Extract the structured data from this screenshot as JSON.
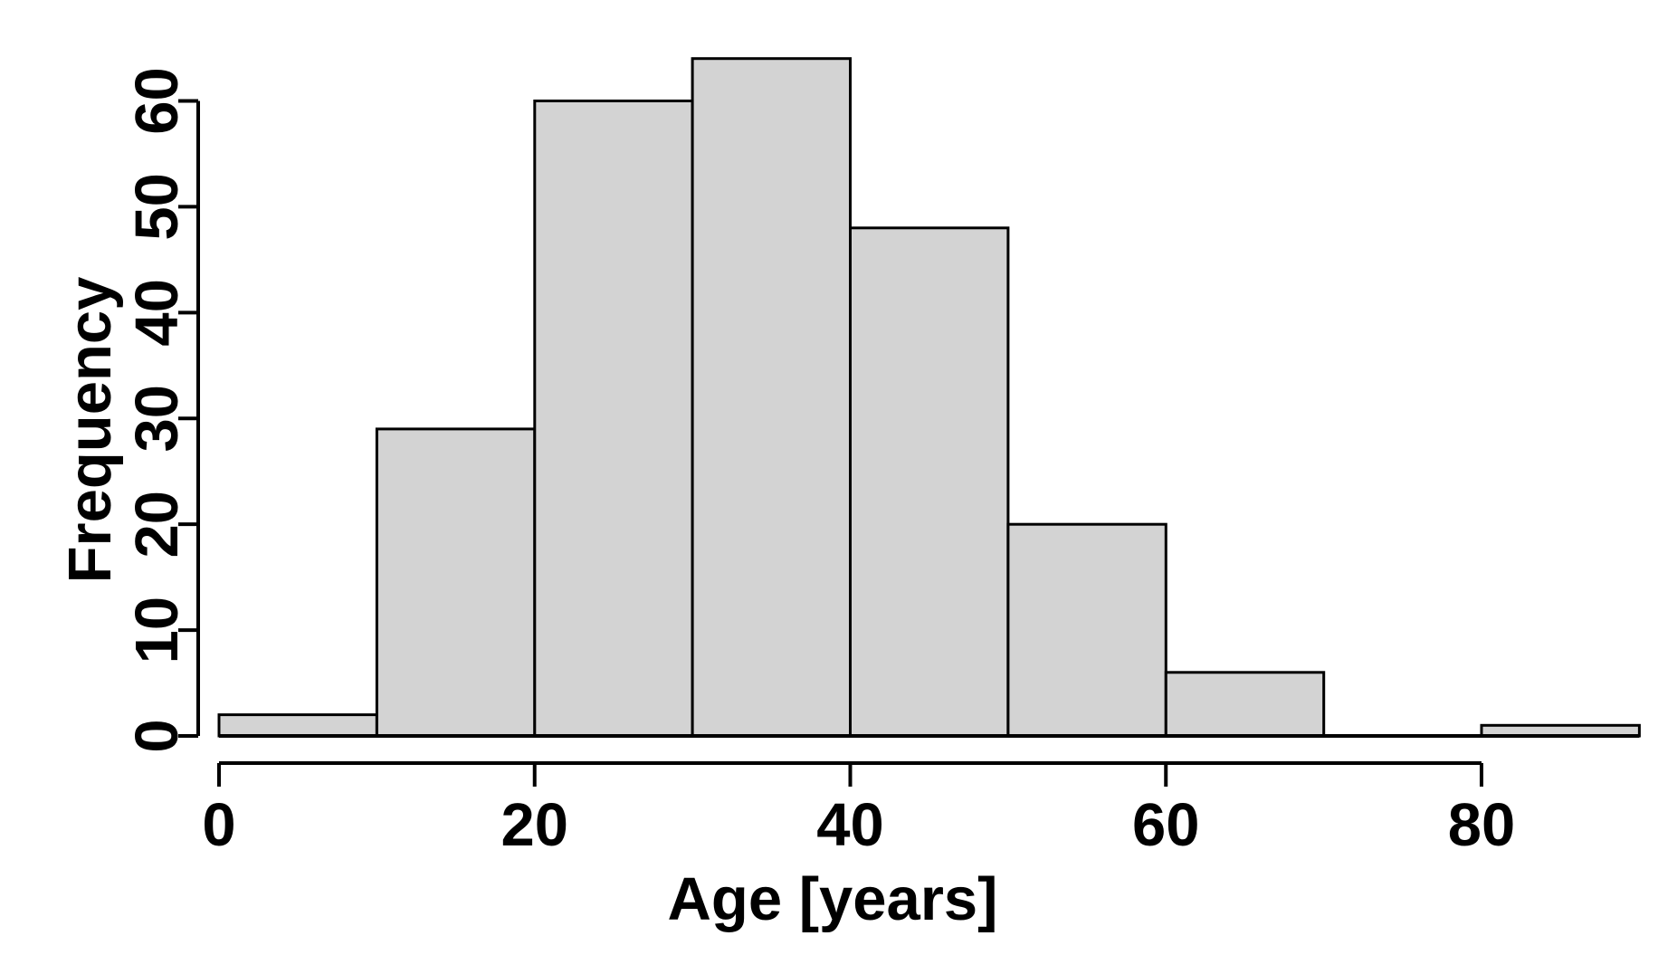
{
  "figure": {
    "xlabel": "Age [years]",
    "ylabel": "Frequency"
  },
  "chart_data": {
    "type": "bar",
    "subtype": "histogram",
    "title": "",
    "xlabel": "Age [years]",
    "ylabel": "Frequency",
    "bin_edges": [
      0,
      10,
      20,
      30,
      40,
      50,
      60,
      70,
      80,
      90
    ],
    "values": [
      2,
      29,
      60,
      64,
      48,
      20,
      6,
      0,
      1
    ],
    "x_ticks": [
      0,
      20,
      40,
      60,
      80
    ],
    "y_ticks": [
      0,
      10,
      20,
      30,
      40,
      50,
      60
    ],
    "xlim": [
      0,
      90
    ],
    "ylim": [
      0,
      64
    ],
    "grid": false,
    "legend": false,
    "bar_fill": "#d3d3d3",
    "bar_border": "#000000",
    "axis_color": "#000000",
    "text_color": "#000000",
    "background": "#ffffff"
  }
}
